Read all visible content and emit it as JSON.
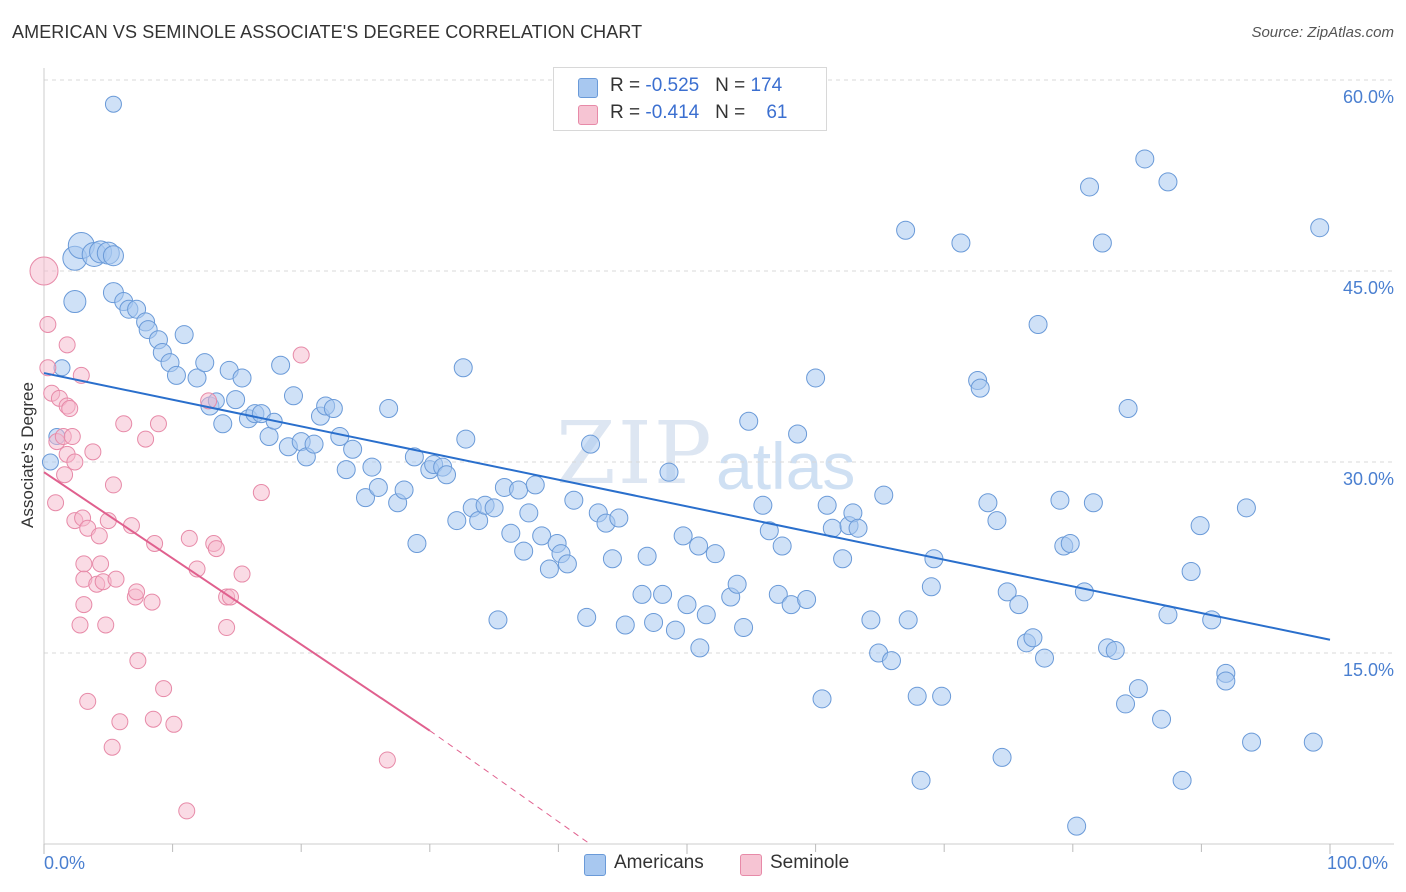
{
  "title": "AMERICAN VS SEMINOLE ASSOCIATE'S DEGREE CORRELATION CHART",
  "source": "Source: ZipAtlas.com",
  "watermark": {
    "zip": "ZIP",
    "atlas": "atlas"
  },
  "legend": {
    "rows": [
      {
        "r_label": "R = ",
        "r_value": "-0.525",
        "n_label": "N = ",
        "n_value": "174"
      },
      {
        "r_label": "R = ",
        "r_value": "-0.414",
        "n_label": "N = ",
        "n_value": "61"
      }
    ]
  },
  "bottom_legend": [
    "Americans",
    "Seminole"
  ],
  "colors": {
    "americans_fill": "#a8c8f0",
    "americans_stroke": "#6a9ad8",
    "americans_line": "#2a6fcc",
    "seminole_fill": "#f6b8cb",
    "seminole_stroke": "#e78aa8",
    "seminole_line": "#e0608e",
    "grid": "#d8d8d8",
    "tick_text": "#4a7fd0"
  },
  "chart_data": {
    "type": "scatter",
    "title": "AMERICAN VS SEMINOLE ASSOCIATE'S DEGREE CORRELATION CHART",
    "xlabel": "",
    "ylabel": "Associate's Degree",
    "xlim": [
      0,
      100
    ],
    "ylim": [
      0,
      61.5
    ],
    "x_tick_labels": [
      "0.0%",
      "100.0%"
    ],
    "y_ticks": [
      15,
      30,
      45,
      60
    ],
    "y_tick_labels": [
      "15.0%",
      "30.0%",
      "45.0%",
      "60.0%"
    ],
    "series": [
      {
        "name": "Americans",
        "R": -0.525,
        "N": 174,
        "trend": {
          "x": [
            0,
            100
          ],
          "y": [
            37.3,
            16.2
          ],
          "dashed_x": []
        },
        "points": [
          [
            0.5,
            30
          ],
          [
            1,
            32
          ],
          [
            1.4,
            37.4
          ],
          [
            2.4,
            42.6
          ],
          [
            2.4,
            46
          ],
          [
            2.9,
            47
          ],
          [
            3.9,
            46.3
          ],
          [
            4.4,
            46.5
          ],
          [
            5,
            46.4
          ],
          [
            5.4,
            46.2
          ],
          [
            5.4,
            58.1
          ],
          [
            5.4,
            58.3
          ],
          [
            5.4,
            58.5
          ],
          [
            5.4,
            58.5
          ],
          [
            5.4,
            58.5
          ],
          [
            5.4,
            58.6
          ],
          [
            5.4,
            58.6
          ],
          [
            5.4,
            58.7
          ],
          [
            5.4,
            58.7
          ],
          [
            5.4,
            58.8
          ],
          [
            5.4,
            58.8
          ],
          [
            5.4,
            58.9
          ],
          [
            5.4,
            58.9
          ],
          [
            5.4,
            58.9
          ],
          [
            5.4,
            59
          ],
          [
            5.4,
            59
          ],
          [
            5.4,
            59
          ],
          [
            5.4,
            59
          ],
          [
            5.4,
            59
          ],
          [
            5.4,
            59
          ],
          [
            5.4,
            59
          ],
          [
            5.4,
            59
          ],
          [
            5.4,
            59
          ],
          [
            5.4,
            59
          ],
          [
            5.4,
            59
          ],
          [
            5.4,
            59
          ],
          [
            5.4,
            59
          ],
          [
            5.4,
            59
          ],
          [
            5.4,
            59
          ],
          [
            5.4,
            59
          ],
          [
            5.4,
            59
          ],
          [
            5.4,
            59
          ],
          [
            5.4,
            59
          ],
          [
            5.4,
            59
          ],
          [
            5.4,
            59
          ],
          [
            5.4,
            59
          ],
          [
            5.4,
            59
          ],
          [
            5.4,
            59
          ],
          [
            5.4,
            59
          ],
          [
            5.4,
            59
          ],
          [
            5.4,
            59
          ],
          [
            5.4,
            59
          ],
          [
            5.4,
            59
          ],
          [
            5.4,
            59
          ],
          [
            5.4,
            59
          ],
          [
            5.4,
            59
          ],
          [
            5.4,
            59
          ],
          [
            5.4,
            59
          ],
          [
            5.4,
            59
          ],
          [
            5.4,
            59
          ],
          [
            5.4,
            59
          ],
          [
            5.4,
            59
          ],
          [
            5.4,
            59
          ],
          [
            5.4,
            59
          ],
          [
            5.4,
            59
          ],
          [
            5.4,
            59
          ],
          [
            5.4,
            59
          ],
          [
            5.4,
            59
          ],
          [
            5.4,
            59
          ],
          [
            5.4,
            59
          ],
          [
            5.4,
            59
          ],
          [
            5.4,
            59
          ],
          [
            5.4,
            59
          ],
          [
            5.4,
            59
          ],
          [
            5.4,
            59
          ],
          [
            5.4,
            59
          ],
          [
            5.4,
            59
          ],
          [
            5.4,
            59
          ],
          [
            5.4,
            59
          ],
          [
            5.4,
            59
          ],
          [
            5.4,
            59
          ],
          [
            5.4,
            59
          ],
          [
            5.4,
            59
          ],
          [
            5.4,
            59
          ],
          [
            5.4,
            59
          ],
          [
            5.4,
            59
          ],
          [
            5.4,
            59
          ],
          [
            5.4,
            59
          ],
          [
            5.4,
            59
          ],
          [
            5.4,
            59
          ],
          [
            5.4,
            59
          ],
          [
            5.4,
            59
          ],
          [
            5.4,
            59
          ],
          [
            5.4,
            59
          ],
          [
            5.4,
            59
          ],
          [
            5.4,
            59
          ],
          [
            5.4,
            59
          ],
          [
            5.4,
            59
          ],
          [
            5.4,
            59
          ],
          [
            5.4,
            59
          ],
          [
            5.4,
            59
          ],
          [
            5.4,
            59
          ],
          [
            5.4,
            59
          ],
          [
            5.4,
            59
          ],
          [
            5.4,
            59
          ],
          [
            5.4,
            59
          ],
          [
            5.4,
            59
          ],
          [
            5.4,
            59
          ],
          [
            5.4,
            59
          ],
          [
            5.4,
            59
          ],
          [
            5.4,
            59
          ],
          [
            5.4,
            59
          ],
          [
            5.4,
            59
          ],
          [
            5.4,
            59
          ],
          [
            5.4,
            59
          ],
          [
            5.4,
            59
          ],
          [
            5.4,
            59
          ],
          [
            5.4,
            59
          ],
          [
            5.4,
            59
          ],
          [
            5.4,
            59
          ],
          [
            5.4,
            59
          ],
          [
            5.4,
            59
          ],
          [
            5.4,
            59
          ],
          [
            5.4,
            59
          ],
          [
            5.4,
            59
          ],
          [
            5.4,
            59
          ],
          [
            5.4,
            59
          ],
          [
            5.4,
            59
          ],
          [
            5.4,
            59
          ],
          [
            5.4,
            59
          ],
          [
            5.4,
            59
          ],
          [
            5.4,
            59
          ],
          [
            5.4,
            59
          ],
          [
            5.4,
            59
          ],
          [
            5.4,
            59
          ],
          [
            5.4,
            59
          ],
          [
            5.4,
            59
          ],
          [
            5.4,
            59
          ],
          [
            5.4,
            59
          ],
          [
            5.4,
            59
          ],
          [
            5.4,
            59
          ],
          [
            5.4,
            59
          ],
          [
            5.4,
            59
          ],
          [
            5.4,
            59
          ],
          [
            5.4,
            59
          ],
          [
            5.4,
            59
          ],
          [
            5.4,
            59
          ],
          [
            5.4,
            59
          ],
          [
            5.4,
            59
          ],
          [
            5.4,
            59
          ],
          [
            5.4,
            59
          ],
          [
            5.4,
            59
          ],
          [
            5.4,
            59
          ],
          [
            5.4,
            59
          ],
          [
            5.4,
            59
          ],
          [
            5.4,
            59
          ],
          [
            5.4,
            59
          ],
          [
            5.4,
            59
          ],
          [
            5.4,
            59
          ],
          [
            5.4,
            59
          ],
          [
            5.4,
            59
          ],
          [
            5.4,
            59
          ],
          [
            5.4,
            59
          ],
          [
            5.4,
            59
          ]
        ]
      },
      {
        "name": "Seminole",
        "R": -0.414,
        "N": 61,
        "trend": {
          "x": [
            0,
            30
          ],
          "y": [
            29.2,
            8.9
          ],
          "dashed_x": [
            30,
            46
          ]
        },
        "points": []
      }
    ]
  }
}
